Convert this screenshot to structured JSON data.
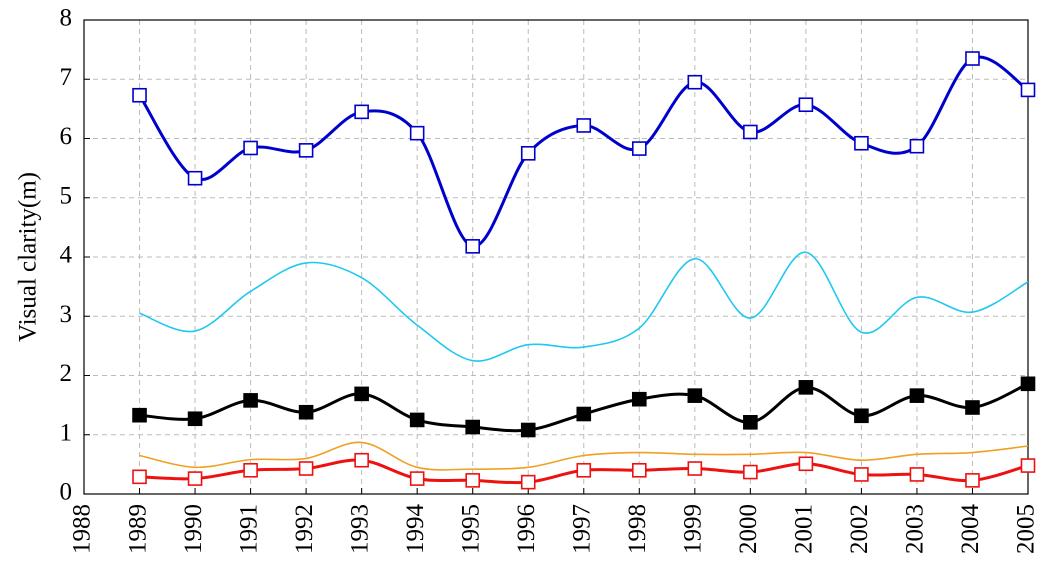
{
  "chart_data": {
    "type": "line",
    "y_label": "Visual clarity(m)",
    "x": [
      1989,
      1990,
      1991,
      1992,
      1993,
      1994,
      1995,
      1996,
      1997,
      1998,
      1999,
      2000,
      2001,
      2002,
      2003,
      2004,
      2005
    ],
    "xlim": [
      1988,
      2005
    ],
    "xticks": [
      1988,
      1989,
      1990,
      1991,
      1992,
      1993,
      1994,
      1995,
      1996,
      1997,
      1998,
      1999,
      2000,
      2001,
      2002,
      2003,
      2004,
      2005
    ],
    "ylim": [
      0,
      8
    ],
    "yticks": [
      0,
      1,
      2,
      3,
      4,
      5,
      6,
      7,
      8
    ],
    "grid": true,
    "series": [
      {
        "color": "#0000cc",
        "marker": "open-square",
        "width": 3,
        "values": [
          6.73,
          5.33,
          5.84,
          5.8,
          6.45,
          6.09,
          4.18,
          5.75,
          6.22,
          5.83,
          6.95,
          6.11,
          6.57,
          5.92,
          5.87,
          7.35,
          6.82
        ]
      },
      {
        "color": "#1ec8f0",
        "marker": "none",
        "width": 1.6,
        "values": [
          3.05,
          2.75,
          3.42,
          3.9,
          3.65,
          2.85,
          2.25,
          2.52,
          2.48,
          2.8,
          3.97,
          2.97,
          4.08,
          2.73,
          3.32,
          3.07,
          3.58
        ]
      },
      {
        "color": "#000000",
        "marker": "filled-square",
        "width": 3,
        "values": [
          1.33,
          1.27,
          1.58,
          1.38,
          1.69,
          1.25,
          1.13,
          1.08,
          1.35,
          1.6,
          1.66,
          1.21,
          1.8,
          1.32,
          1.66,
          1.46,
          1.86
        ]
      },
      {
        "color": "#f0a020",
        "marker": "none",
        "width": 1.6,
        "values": [
          0.65,
          0.45,
          0.58,
          0.6,
          0.87,
          0.45,
          0.42,
          0.45,
          0.65,
          0.7,
          0.67,
          0.67,
          0.7,
          0.57,
          0.67,
          0.7,
          0.81
        ]
      },
      {
        "color": "#ee1111",
        "marker": "open-square",
        "width": 3,
        "values": [
          0.29,
          0.26,
          0.4,
          0.43,
          0.57,
          0.26,
          0.23,
          0.2,
          0.4,
          0.4,
          0.43,
          0.37,
          0.51,
          0.33,
          0.33,
          0.23,
          0.48
        ]
      }
    ]
  }
}
